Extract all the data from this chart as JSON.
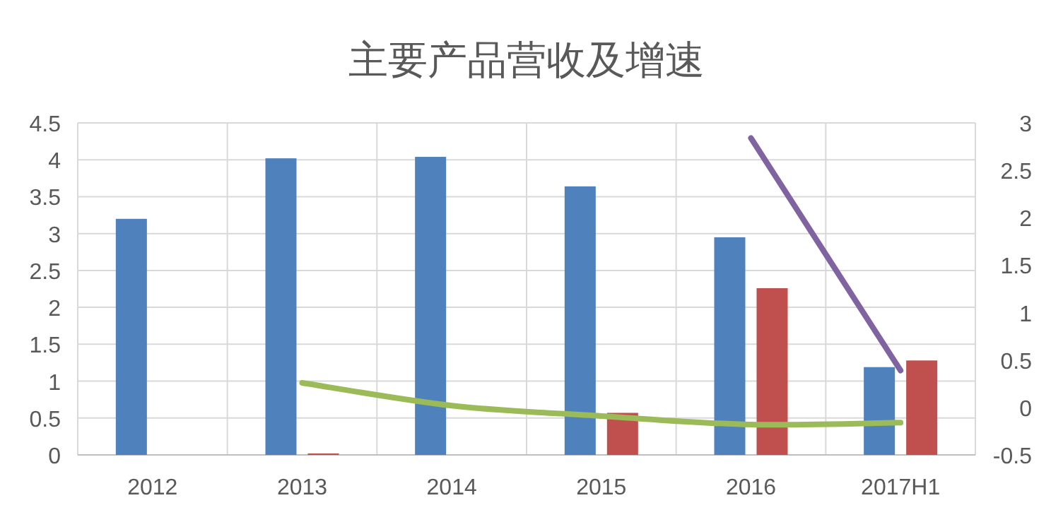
{
  "chart_data": {
    "type": "bar",
    "title": "主要产品营收及增速",
    "categories": [
      "2012",
      "2013",
      "2014",
      "2015",
      "2016",
      "2017H1"
    ],
    "series": [
      {
        "color": "#4f81bd",
        "values": [
          3.2,
          4.02,
          4.04,
          3.64,
          2.95,
          1.19
        ]
      },
      {
        "color": "#c0504d",
        "values": [
          null,
          0.02,
          null,
          0.57,
          2.26,
          1.28
        ]
      },
      {
        "type": "line",
        "axis": "y2",
        "color": "#9bbb59",
        "values": [
          null,
          0.26,
          0.02,
          -0.09,
          -0.18,
          -0.16
        ]
      },
      {
        "type": "line",
        "axis": "y2",
        "color": "#8064a2",
        "values": [
          null,
          null,
          null,
          null,
          2.84,
          0.39
        ]
      }
    ],
    "ylim": [
      0,
      4.5
    ],
    "yticks": [
      0,
      0.5,
      1,
      1.5,
      2,
      2.5,
      3,
      3.5,
      4,
      4.5
    ],
    "y2lim": [
      -0.5,
      3
    ],
    "y2ticks": [
      -0.5,
      0,
      0.5,
      1,
      1.5,
      2,
      2.5,
      3
    ],
    "grid": true
  }
}
